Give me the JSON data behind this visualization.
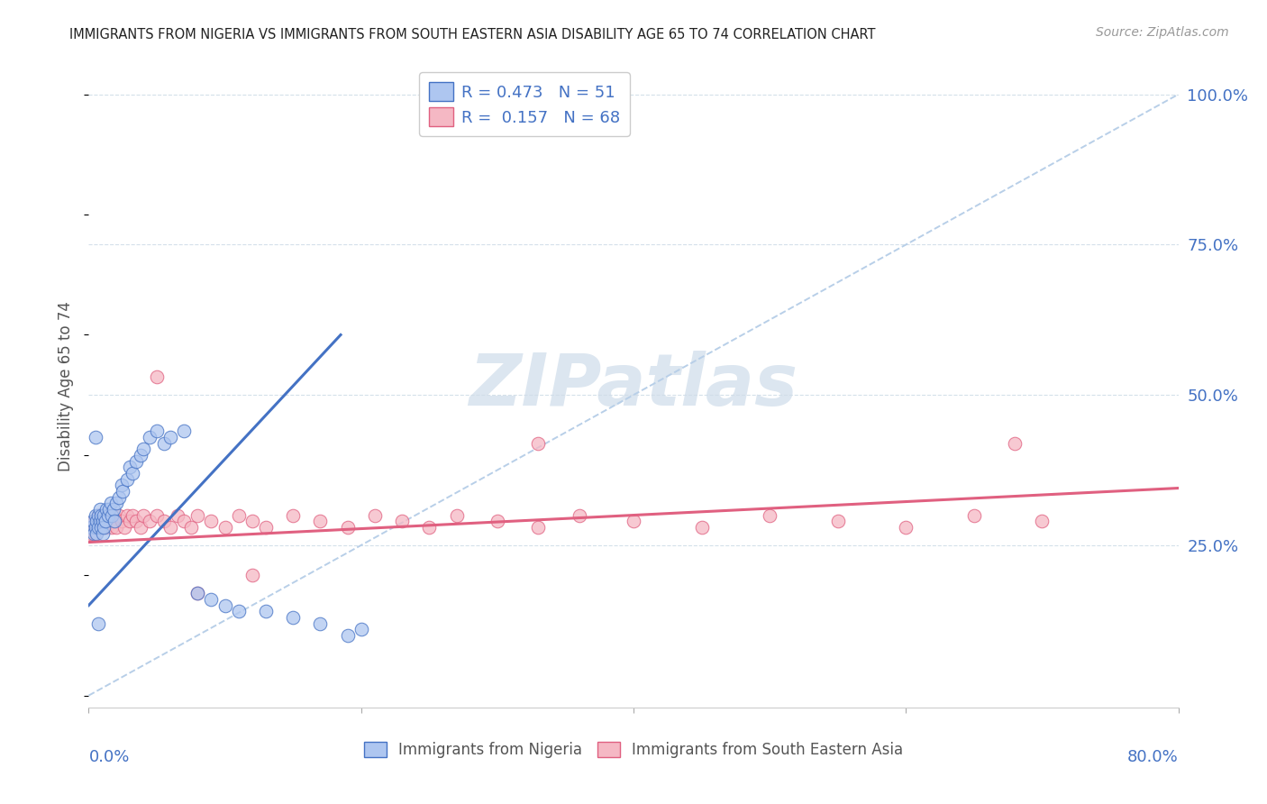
{
  "title": "IMMIGRANTS FROM NIGERIA VS IMMIGRANTS FROM SOUTH EASTERN ASIA DISABILITY AGE 65 TO 74 CORRELATION CHART",
  "source": "Source: ZipAtlas.com",
  "ylabel": "Disability Age 65 to 74",
  "legend1_color": "#aec6f0",
  "legend2_color": "#f5b8c4",
  "line1_color": "#4472C4",
  "line2_color": "#E06080",
  "dashed_line_color": "#b8cfe8",
  "background_color": "#ffffff",
  "grid_color": "#d0dde8",
  "axis_label_color": "#4472C4",
  "watermark_color": "#dce6f0",
  "xlim": [
    0.0,
    0.8
  ],
  "ylim": [
    -0.02,
    1.05
  ],
  "right_yticks": [
    0.25,
    0.5,
    0.75,
    1.0
  ],
  "right_yticklabels": [
    "25.0%",
    "50.0%",
    "75.0%",
    "100.0%"
  ],
  "nig_line_x": [
    0.0,
    0.185
  ],
  "nig_line_y": [
    0.15,
    0.6
  ],
  "sea_line_x": [
    0.0,
    0.8
  ],
  "sea_line_y": [
    0.255,
    0.345
  ],
  "nig_scatter_x": [
    0.002,
    0.003,
    0.004,
    0.005,
    0.005,
    0.006,
    0.006,
    0.007,
    0.007,
    0.008,
    0.008,
    0.009,
    0.009,
    0.01,
    0.01,
    0.011,
    0.011,
    0.012,
    0.013,
    0.014,
    0.015,
    0.016,
    0.017,
    0.018,
    0.019,
    0.02,
    0.022,
    0.024,
    0.025,
    0.028,
    0.03,
    0.032,
    0.035,
    0.038,
    0.04,
    0.045,
    0.05,
    0.055,
    0.06,
    0.07,
    0.08,
    0.09,
    0.1,
    0.11,
    0.13,
    0.15,
    0.17,
    0.2,
    0.005,
    0.007,
    0.19
  ],
  "nig_scatter_y": [
    0.28,
    0.29,
    0.27,
    0.3,
    0.28,
    0.27,
    0.29,
    0.3,
    0.28,
    0.31,
    0.29,
    0.28,
    0.3,
    0.29,
    0.27,
    0.3,
    0.28,
    0.29,
    0.31,
    0.3,
    0.31,
    0.32,
    0.3,
    0.31,
    0.29,
    0.32,
    0.33,
    0.35,
    0.34,
    0.36,
    0.38,
    0.37,
    0.39,
    0.4,
    0.41,
    0.43,
    0.44,
    0.42,
    0.43,
    0.44,
    0.17,
    0.16,
    0.15,
    0.14,
    0.14,
    0.13,
    0.12,
    0.11,
    0.43,
    0.12,
    0.1
  ],
  "sea_scatter_x": [
    0.002,
    0.003,
    0.004,
    0.005,
    0.005,
    0.006,
    0.006,
    0.007,
    0.007,
    0.008,
    0.008,
    0.009,
    0.01,
    0.01,
    0.011,
    0.012,
    0.013,
    0.014,
    0.015,
    0.016,
    0.017,
    0.018,
    0.019,
    0.02,
    0.022,
    0.024,
    0.026,
    0.028,
    0.03,
    0.032,
    0.035,
    0.038,
    0.04,
    0.045,
    0.05,
    0.055,
    0.06,
    0.065,
    0.07,
    0.075,
    0.08,
    0.09,
    0.1,
    0.11,
    0.12,
    0.13,
    0.15,
    0.17,
    0.19,
    0.21,
    0.23,
    0.25,
    0.27,
    0.3,
    0.33,
    0.36,
    0.4,
    0.45,
    0.5,
    0.55,
    0.6,
    0.65,
    0.7,
    0.33,
    0.68,
    0.05,
    0.12,
    0.08
  ],
  "sea_scatter_y": [
    0.27,
    0.28,
    0.29,
    0.28,
    0.27,
    0.29,
    0.28,
    0.3,
    0.29,
    0.28,
    0.3,
    0.29,
    0.28,
    0.3,
    0.29,
    0.3,
    0.28,
    0.29,
    0.3,
    0.29,
    0.28,
    0.3,
    0.29,
    0.28,
    0.3,
    0.29,
    0.28,
    0.3,
    0.29,
    0.3,
    0.29,
    0.28,
    0.3,
    0.29,
    0.3,
    0.29,
    0.28,
    0.3,
    0.29,
    0.28,
    0.3,
    0.29,
    0.28,
    0.3,
    0.29,
    0.28,
    0.3,
    0.29,
    0.28,
    0.3,
    0.29,
    0.28,
    0.3,
    0.29,
    0.28,
    0.3,
    0.29,
    0.28,
    0.3,
    0.29,
    0.28,
    0.3,
    0.29,
    0.42,
    0.42,
    0.53,
    0.2,
    0.17
  ]
}
